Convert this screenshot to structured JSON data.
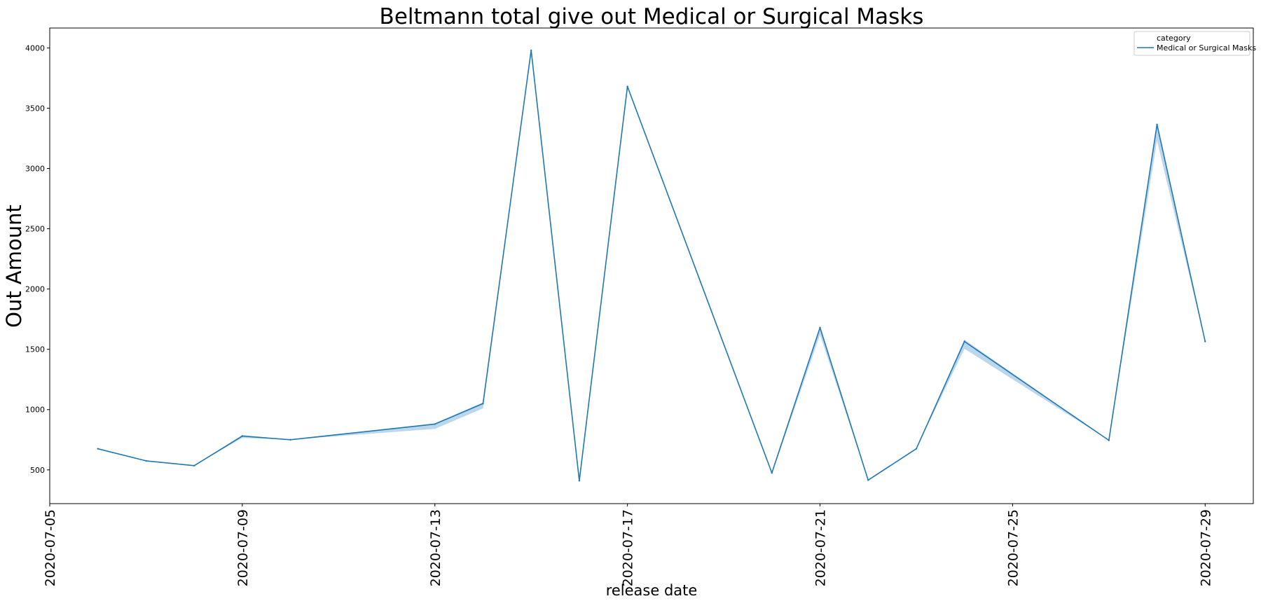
{
  "chart_data": {
    "type": "line",
    "title": "Beltmann total give out Medical or Surgical Masks",
    "xlabel": "release date",
    "ylabel": "Out Amount",
    "x_tick_labels": [
      "2020-07-05",
      "2020-07-09",
      "2020-07-13",
      "2020-07-17",
      "2020-07-21",
      "2020-07-25",
      "2020-07-29"
    ],
    "y_tick_labels": [
      "500",
      "1000",
      "1500",
      "2000",
      "2500",
      "3000",
      "3500",
      "4000"
    ],
    "xlim": [
      "2020-07-05",
      "2020-07-30"
    ],
    "ylim": [
      220,
      4165
    ],
    "grid": false,
    "legend": {
      "title": "category",
      "placement": "top-right",
      "entries": [
        "Medical or Surgical Masks"
      ]
    },
    "colors": {
      "line": "#1f77b4",
      "band": "#a6c8e4"
    },
    "series": [
      {
        "name": "Medical or Surgical Masks",
        "x": [
          "2020-07-06",
          "2020-07-07",
          "2020-07-08",
          "2020-07-09",
          "2020-07-10",
          "2020-07-13",
          "2020-07-14",
          "2020-07-15",
          "2020-07-16",
          "2020-07-17",
          "2020-07-20",
          "2020-07-21",
          "2020-07-22",
          "2020-07-23",
          "2020-07-24",
          "2020-07-27",
          "2020-07-28",
          "2020-07-29"
        ],
        "values": [
          675,
          575,
          535,
          780,
          750,
          880,
          1050,
          3980,
          410,
          3680,
          475,
          1680,
          415,
          675,
          1565,
          745,
          3365,
          1565
        ],
        "ci_low": [
          675,
          575,
          535,
          765,
          750,
          840,
          1010,
          3980,
          400,
          3680,
          465,
          1620,
          415,
          675,
          1505,
          745,
          3230,
          1565
        ],
        "ci_high": [
          675,
          575,
          535,
          790,
          750,
          885,
          1060,
          3980,
          415,
          3680,
          480,
          1690,
          420,
          675,
          1580,
          745,
          3370,
          1565
        ]
      }
    ]
  }
}
